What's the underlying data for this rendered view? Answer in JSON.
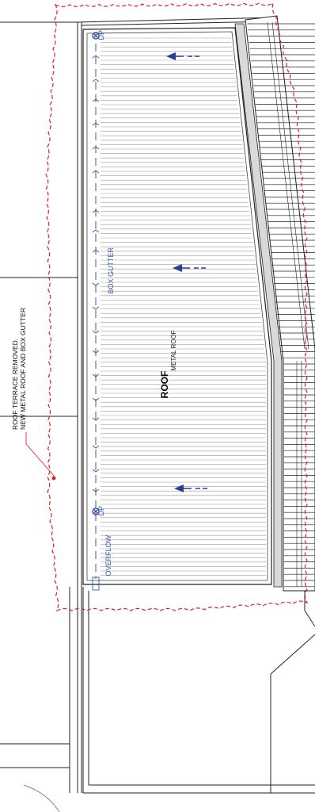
{
  "annotation": {
    "line1": "ROOF TERRACE REMOVED.",
    "line2": "NEW METAL ROOF AND BOX GUTTER"
  },
  "roof": {
    "title": "ROOF",
    "subtitle": "METAL ROOF"
  },
  "gutter": {
    "label": "BOX GUTTER",
    "downpipe_top": "DP",
    "downpipe_bottom": "DP",
    "overflow": "OVERFLOW"
  },
  "colors": {
    "revision_cloud": "#e02020",
    "gutter_blue": "#3a57a8",
    "fall_arrow": "#2a3f8f",
    "linework": "#222222"
  },
  "icons": {
    "downpipe": "circle-cross-icon",
    "fall_arrow": "arrow-left-icon"
  }
}
